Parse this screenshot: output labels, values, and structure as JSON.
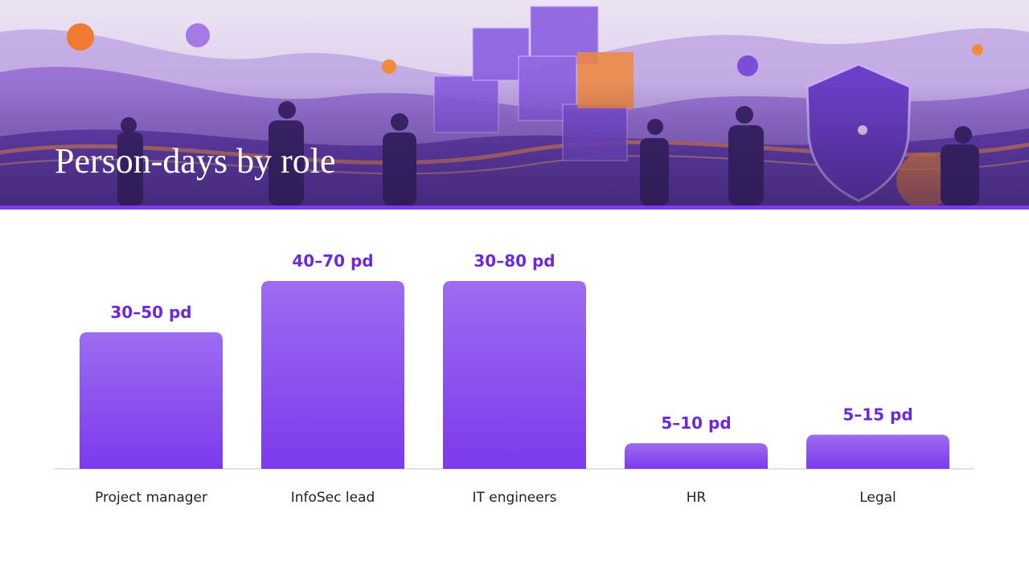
{
  "chart_data": {
    "type": "bar",
    "title": "Person-days by role",
    "categories": [
      "Project manager",
      "InfoSec lead",
      "IT engineers",
      "HR",
      "Legal"
    ],
    "values": [
      40,
      55,
      55,
      7.5,
      10
    ],
    "value_labels": [
      "30–50 pd",
      "40–70 pd",
      "30–80 pd",
      "5–10 pd",
      "5–15 pd"
    ],
    "color": "#7c3aed"
  }
}
